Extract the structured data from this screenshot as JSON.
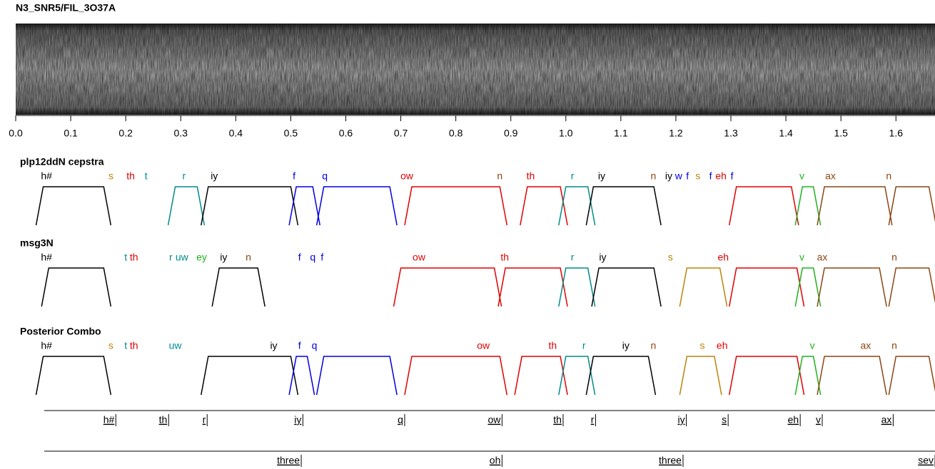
{
  "chart_data": {
    "type": "posterior-plot",
    "title": "N3_SNR5/FIL_3O37A",
    "xlim": [
      0,
      1.671
    ],
    "xticks": [
      {
        "value": 0,
        "label": "0.0"
      },
      0.1,
      0.2,
      0.3,
      0.4,
      0.5,
      0.6,
      0.7,
      0.8,
      0.9,
      {
        "value": 1,
        "label": "1.0"
      },
      1.1,
      1.2,
      1.3,
      1.4,
      1.5,
      1.6
    ],
    "panels": [
      {
        "name": "plp12ddN cepstra",
        "labels": [
          {
            "text": "h#",
            "t": 0.056,
            "color": "#000000"
          },
          {
            "text": "s",
            "t": 0.173,
            "color": "#b8860b"
          },
          {
            "text": "th",
            "t": 0.209,
            "color": "#e00000"
          },
          {
            "text": "t",
            "t": 0.237,
            "color": "#008b8b"
          },
          {
            "text": "r",
            "t": 0.306,
            "color": "#008b8b"
          },
          {
            "text": "iy",
            "t": 0.361,
            "color": "#000000"
          },
          {
            "text": "f",
            "t": 0.506,
            "color": "#0000e0"
          },
          {
            "text": "q",
            "t": 0.562,
            "color": "#0000e0"
          },
          {
            "text": "ow",
            "t": 0.711,
            "color": "#e00000"
          },
          {
            "text": "n",
            "t": 0.88,
            "color": "#8b4513"
          },
          {
            "text": "th",
            "t": 0.936,
            "color": "#e00000"
          },
          {
            "text": "r",
            "t": 1.012,
            "color": "#008b8b"
          },
          {
            "text": "iy",
            "t": 1.065,
            "color": "#000000"
          },
          {
            "text": "n",
            "t": 1.159,
            "color": "#8b4513"
          },
          {
            "text": "iy",
            "t": 1.187,
            "color": "#000000"
          },
          {
            "text": "w",
            "t": 1.205,
            "color": "#0000e0"
          },
          {
            "text": "f",
            "t": 1.221,
            "color": "#0000e0"
          },
          {
            "text": "s",
            "t": 1.24,
            "color": "#b8860b"
          },
          {
            "text": "f",
            "t": 1.263,
            "color": "#0000e0"
          },
          {
            "text": "eh",
            "t": 1.282,
            "color": "#e00000"
          },
          {
            "text": "f",
            "t": 1.302,
            "color": "#0000e0"
          },
          {
            "text": "v",
            "t": 1.429,
            "color": "#20b020"
          },
          {
            "text": "ax",
            "t": 1.481,
            "color": "#8b4513"
          },
          {
            "text": "n",
            "t": 1.587,
            "color": "#8b4513"
          }
        ],
        "segments": [
          {
            "start": 0.05,
            "end": 0.16,
            "color": "#000000"
          },
          {
            "start": 0.29,
            "end": 0.33,
            "color": "#008b8b"
          },
          {
            "start": 0.35,
            "end": 0.5,
            "color": "#000000"
          },
          {
            "start": 0.51,
            "end": 0.54,
            "color": "#0000e0"
          },
          {
            "start": 0.56,
            "end": 0.68,
            "color": "#0000e0"
          },
          {
            "start": 0.72,
            "end": 0.88,
            "color": "#e00000"
          },
          {
            "start": 0.93,
            "end": 0.99,
            "color": "#e00000"
          },
          {
            "start": 1.0,
            "end": 1.04,
            "color": "#008b8b"
          },
          {
            "start": 1.05,
            "end": 1.16,
            "color": "#000000"
          },
          {
            "start": 1.31,
            "end": 1.41,
            "color": "#e00000"
          },
          {
            "start": 1.43,
            "end": 1.45,
            "color": "#20b020"
          },
          {
            "start": 1.47,
            "end": 1.58,
            "color": "#8b4513"
          },
          {
            "start": 1.6,
            "end": 1.66,
            "color": "#8b4513"
          }
        ]
      },
      {
        "name": "msg3N",
        "labels": [
          {
            "text": "h#",
            "t": 0.056,
            "color": "#000000"
          },
          {
            "text": "t",
            "t": 0.2,
            "color": "#008b8b"
          },
          {
            "text": "th",
            "t": 0.215,
            "color": "#e00000"
          },
          {
            "text": "r",
            "t": 0.282,
            "color": "#008b8b"
          },
          {
            "text": "uw",
            "t": 0.302,
            "color": "#008b8b"
          },
          {
            "text": "ey",
            "t": 0.338,
            "color": "#20b020"
          },
          {
            "text": "iy",
            "t": 0.378,
            "color": "#000000"
          },
          {
            "text": "n",
            "t": 0.423,
            "color": "#8b4513"
          },
          {
            "text": "f",
            "t": 0.516,
            "color": "#0000e0"
          },
          {
            "text": "q",
            "t": 0.54,
            "color": "#0000e0"
          },
          {
            "text": "f",
            "t": 0.557,
            "color": "#0000e0"
          },
          {
            "text": "ow",
            "t": 0.733,
            "color": "#e00000"
          },
          {
            "text": "th",
            "t": 0.889,
            "color": "#e00000"
          },
          {
            "text": "r",
            "t": 1.012,
            "color": "#008b8b"
          },
          {
            "text": "iy",
            "t": 1.067,
            "color": "#000000"
          },
          {
            "text": "s",
            "t": 1.19,
            "color": "#b8860b"
          },
          {
            "text": "eh",
            "t": 1.286,
            "color": "#e00000"
          },
          {
            "text": "v",
            "t": 1.429,
            "color": "#20b020"
          },
          {
            "text": "ax",
            "t": 1.466,
            "color": "#8b4513"
          },
          {
            "text": "n",
            "t": 1.597,
            "color": "#8b4513"
          }
        ],
        "segments": [
          {
            "start": 0.06,
            "end": 0.16,
            "color": "#000000"
          },
          {
            "start": 0.37,
            "end": 0.44,
            "color": "#000000"
          },
          {
            "start": 0.7,
            "end": 0.87,
            "color": "#e00000"
          },
          {
            "start": 0.89,
            "end": 0.99,
            "color": "#e00000"
          },
          {
            "start": 1.0,
            "end": 1.04,
            "color": "#008b8b"
          },
          {
            "start": 1.06,
            "end": 1.16,
            "color": "#000000"
          },
          {
            "start": 1.22,
            "end": 1.28,
            "color": "#b8860b"
          },
          {
            "start": 1.31,
            "end": 1.42,
            "color": "#e00000"
          },
          {
            "start": 1.43,
            "end": 1.45,
            "color": "#20b020"
          },
          {
            "start": 1.47,
            "end": 1.57,
            "color": "#8b4513"
          },
          {
            "start": 1.6,
            "end": 1.66,
            "color": "#8b4513"
          }
        ]
      },
      {
        "name": "Posterior Combo",
        "labels": [
          {
            "text": "h#",
            "t": 0.056,
            "color": "#000000"
          },
          {
            "text": "s",
            "t": 0.173,
            "color": "#b8860b"
          },
          {
            "text": "t",
            "t": 0.2,
            "color": "#008b8b"
          },
          {
            "text": "th",
            "t": 0.215,
            "color": "#e00000"
          },
          {
            "text": "uw",
            "t": 0.29,
            "color": "#008b8b"
          },
          {
            "text": "iy",
            "t": 0.469,
            "color": "#000000"
          },
          {
            "text": "f",
            "t": 0.516,
            "color": "#0000e0"
          },
          {
            "text": "q",
            "t": 0.543,
            "color": "#0000e0"
          },
          {
            "text": "ow",
            "t": 0.85,
            "color": "#e00000"
          },
          {
            "text": "th",
            "t": 0.976,
            "color": "#e00000"
          },
          {
            "text": "r",
            "t": 1.033,
            "color": "#008b8b"
          },
          {
            "text": "iy",
            "t": 1.109,
            "color": "#000000"
          },
          {
            "text": "n",
            "t": 1.159,
            "color": "#8b4513"
          },
          {
            "text": "s",
            "t": 1.248,
            "color": "#b8860b"
          },
          {
            "text": "eh",
            "t": 1.284,
            "color": "#e00000"
          },
          {
            "text": "v",
            "t": 1.448,
            "color": "#20b020"
          },
          {
            "text": "ax",
            "t": 1.545,
            "color": "#8b4513"
          },
          {
            "text": "n",
            "t": 1.597,
            "color": "#8b4513"
          }
        ],
        "segments": [
          {
            "start": 0.05,
            "end": 0.16,
            "color": "#000000"
          },
          {
            "start": 0.35,
            "end": 0.5,
            "color": "#000000"
          },
          {
            "start": 0.51,
            "end": 0.53,
            "color": "#0000e0"
          },
          {
            "start": 0.56,
            "end": 0.68,
            "color": "#0000e0"
          },
          {
            "start": 0.72,
            "end": 0.88,
            "color": "#e00000"
          },
          {
            "start": 0.92,
            "end": 0.99,
            "color": "#e00000"
          },
          {
            "start": 1.0,
            "end": 1.04,
            "color": "#008b8b"
          },
          {
            "start": 1.05,
            "end": 1.15,
            "color": "#000000"
          },
          {
            "start": 1.22,
            "end": 1.27,
            "color": "#b8860b"
          },
          {
            "start": 1.31,
            "end": 1.42,
            "color": "#e00000"
          },
          {
            "start": 1.43,
            "end": 1.45,
            "color": "#20b020"
          },
          {
            "start": 1.47,
            "end": 1.57,
            "color": "#8b4513"
          },
          {
            "start": 1.6,
            "end": 1.66,
            "color": "#8b4513"
          }
        ]
      }
    ],
    "tiers": [
      [
        {
          "text": "h#",
          "end": 0.182
        },
        {
          "text": "th",
          "end": 0.278
        },
        {
          "text": "r",
          "end": 0.348
        },
        {
          "text": "iy",
          "end": 0.522
        },
        {
          "text": "q",
          "end": 0.707
        },
        {
          "text": "ow",
          "end": 0.884
        },
        {
          "text": "th",
          "end": 0.995
        },
        {
          "text": "r",
          "end": 1.054
        },
        {
          "text": "iy",
          "end": 1.219
        },
        {
          "text": "s",
          "end": 1.295
        },
        {
          "text": "eh",
          "end": 1.426
        },
        {
          "text": "v",
          "end": 1.466
        },
        {
          "text": "ax",
          "end": 1.595
        }
      ],
      [
        {
          "text": "three",
          "end": 0.519
        },
        {
          "text": "oh",
          "end": 0.884
        },
        {
          "text": "three",
          "end": 1.213
        },
        {
          "text": "sev",
          "end": 1.671
        }
      ]
    ]
  }
}
